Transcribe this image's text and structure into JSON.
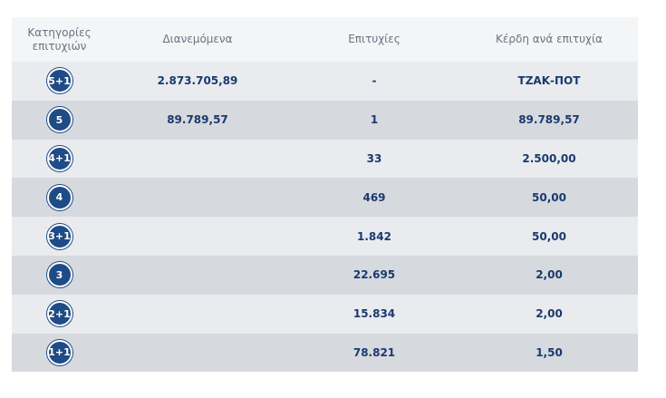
{
  "table": {
    "headers": {
      "category": "Κατηγορίες επιτυχιών",
      "distributed": "Διανεμόμενα",
      "winners": "Επιτυχίες",
      "prize": "Κέρδη ανά επιτυχία"
    },
    "rows": [
      {
        "category": "5+1",
        "distributed": "2.873.705,89",
        "winners": "-",
        "prize": "ΤΖΑΚ-ΠΟΤ"
      },
      {
        "category": "5",
        "distributed": "89.789,57",
        "winners": "1",
        "prize": "89.789,57"
      },
      {
        "category": "4+1",
        "distributed": "",
        "winners": "33",
        "prize": "2.500,00"
      },
      {
        "category": "4",
        "distributed": "",
        "winners": "469",
        "prize": "50,00"
      },
      {
        "category": "3+1",
        "distributed": "",
        "winners": "1.842",
        "prize": "50,00"
      },
      {
        "category": "3",
        "distributed": "",
        "winners": "22.695",
        "prize": "2,00"
      },
      {
        "category": "2+1",
        "distributed": "",
        "winners": "15.834",
        "prize": "2,00"
      },
      {
        "category": "1+1",
        "distributed": "",
        "winners": "78.821",
        "prize": "1,50"
      }
    ]
  },
  "colors": {
    "badge": "#1f4b86",
    "value_text": "#1a3a6e",
    "header_bg": "#f4f5f7",
    "row_light": "#e9ebef",
    "row_dark": "#d6d9de"
  }
}
